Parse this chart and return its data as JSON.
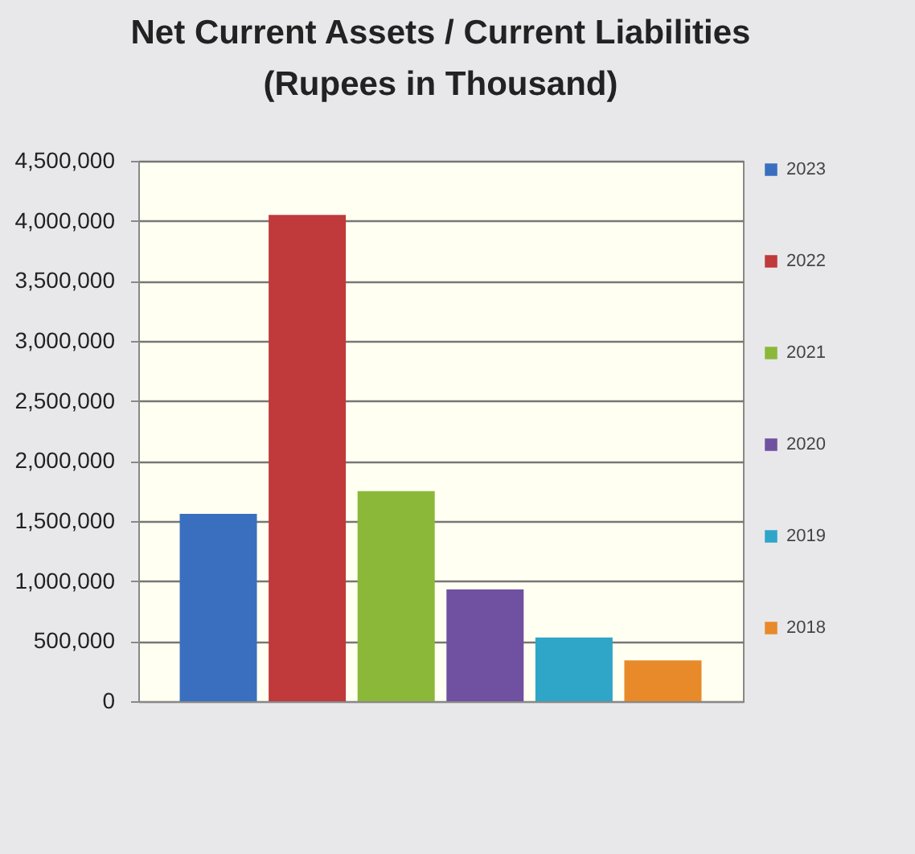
{
  "chart_data": {
    "type": "bar",
    "title": "Net Current Assets / Current Liabilities\n(Rupees in Thousand)",
    "categories": [
      null,
      null,
      null,
      null,
      null,
      null
    ],
    "series": [
      {
        "name": "2023",
        "color": "#3a6fbf",
        "values": [
          1560000,
          null,
          null,
          null,
          null,
          null
        ]
      },
      {
        "name": "2022",
        "color": "#c0393b",
        "values": [
          null,
          4050000,
          null,
          null,
          null,
          null
        ]
      },
      {
        "name": "2021",
        "color": "#8cb83a",
        "values": [
          null,
          null,
          1750000,
          null,
          null,
          null
        ]
      },
      {
        "name": "2020",
        "color": "#7050a0",
        "values": [
          null,
          null,
          null,
          930000,
          null,
          null
        ]
      },
      {
        "name": "2019",
        "color": "#2fa5c8",
        "values": [
          null,
          null,
          null,
          null,
          530000,
          null
        ]
      },
      {
        "name": "2018",
        "color": "#e88a2a",
        "values": [
          null,
          null,
          null,
          null,
          null,
          340000
        ]
      }
    ],
    "ylim": [
      0,
      4500000
    ],
    "yticks": [
      0,
      {
        "value": 500000,
        "label": "500,000"
      },
      {
        "value": 1000000,
        "label": "1,000,000"
      },
      {
        "value": 1500000,
        "label": "1,500,000"
      },
      {
        "value": 2000000,
        "label": "2,000,000"
      },
      {
        "value": 2500000,
        "label": "2,500,000"
      },
      {
        "value": 3000000,
        "label": "3,000,000"
      },
      {
        "value": 3500000,
        "label": "3,500,000"
      },
      {
        "value": 4000000,
        "label": "4,000,000"
      },
      {
        "value": 4500000,
        "label": "4,500,000"
      }
    ],
    "grid": "y",
    "legend": "right",
    "tick_labels": "y"
  }
}
